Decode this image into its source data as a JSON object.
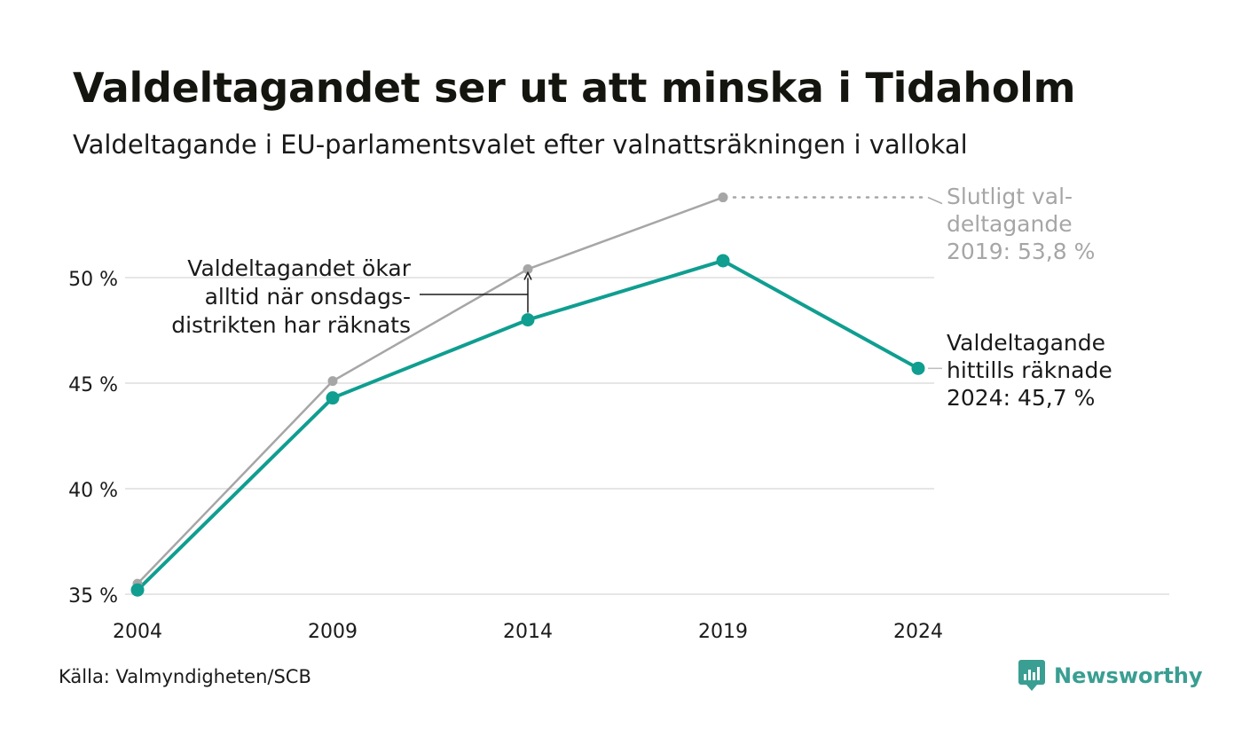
{
  "header": {
    "title": "Valdeltagandet ser ut att minska i Tidaholm",
    "subtitle": "Valdeltagande i EU-parlamentsvalet efter valnattsräkningen i vallokal"
  },
  "footer": {
    "source": "Källa: Valmyndigheten/SCB",
    "brand": "Newsworthy"
  },
  "colors": {
    "current": "#0f9e90",
    "final": "#a6a6a6",
    "grid": "#e6e6e6",
    "annotation_final": "#a6a6a6",
    "annotation_main": "#1a1a1a",
    "brand": "#3a9e92"
  },
  "chart_data": {
    "type": "line",
    "x": [
      2004,
      2009,
      2014,
      2019,
      2024
    ],
    "ylim": [
      35,
      55
    ],
    "yticks": [
      35,
      40,
      45,
      50
    ],
    "ytick_labels": [
      "35 %",
      "40 %",
      "45 %",
      "50 %"
    ],
    "xtick_labels": [
      "2004",
      "2009",
      "2014",
      "2019",
      "2024"
    ],
    "grid": true,
    "series": [
      {
        "key": "final",
        "values": [
          35.5,
          45.1,
          50.4,
          53.8,
          null
        ]
      },
      {
        "key": "current",
        "values": [
          35.2,
          44.3,
          48.0,
          50.8,
          45.7
        ]
      }
    ],
    "annotations": {
      "final_2019": [
        "Slutligt val-",
        "deltagande",
        "2019: 53,8 %"
      ],
      "current_2024": [
        "Valdeltagande",
        "hittills räknade",
        "2024: 45,7 %"
      ],
      "wednesday": [
        "Valdeltagandet ökar",
        "alltid när onsdags-",
        "distrikten har räknats"
      ]
    }
  }
}
